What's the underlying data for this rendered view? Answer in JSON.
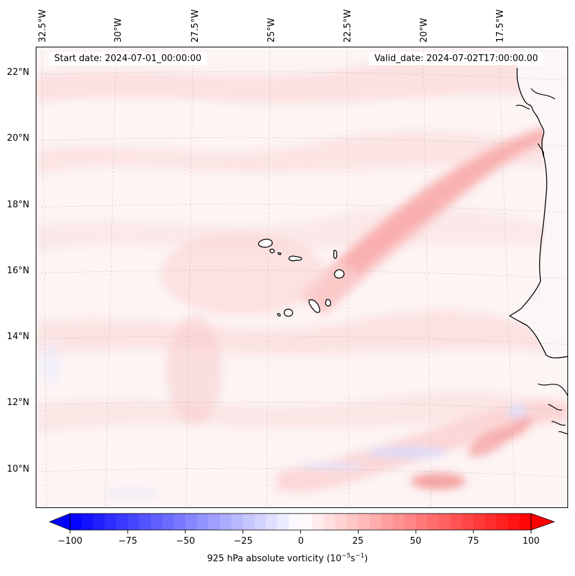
{
  "map": {
    "start_date": "Start date: 2024-07-01_00:00:00",
    "valid_date": "Valid_date: 2024-07-02T17:00:00.00",
    "lon_labels": [
      "32.5°W",
      "30°W",
      "27.5°W",
      "25°W",
      "22.5°W",
      "20°W",
      "17.5°W"
    ],
    "lat_labels": [
      "22°N",
      "20°N",
      "18°N",
      "16°N",
      "14°N",
      "12°N",
      "10°N"
    ]
  },
  "colorbar": {
    "ticks": [
      "−100",
      "−75",
      "−50",
      "−25",
      "0",
      "25",
      "50",
      "75",
      "100"
    ],
    "label_main": "925 hPa absolute vorticity (10",
    "label_exp1": "−5",
    "label_mid": "s",
    "label_exp2": "−1",
    "label_end": ")",
    "min": -100,
    "max": 100,
    "extend": "both",
    "colormap": "bwr"
  },
  "colors": {
    "negative": "#0000ff",
    "zero": "#ffffff",
    "positive": "#ff0000",
    "coastline": "#000000"
  }
}
